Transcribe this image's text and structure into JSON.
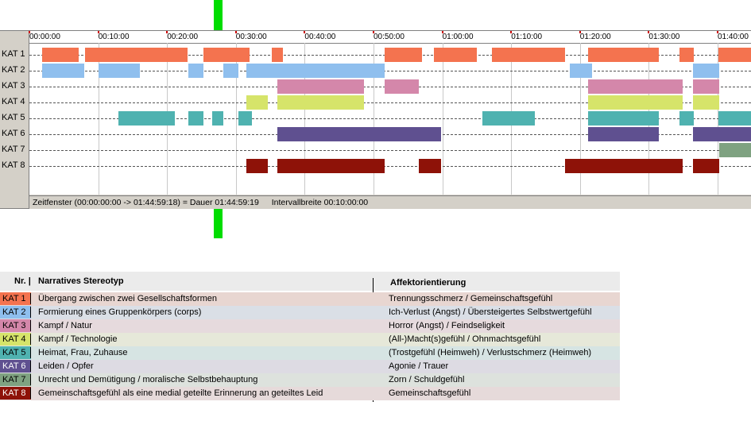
{
  "chart_data": {
    "type": "gantt",
    "x_unit": "minutes",
    "x_range": [
      0,
      105
    ],
    "ticks": [
      "00:00:00",
      "00:10:00",
      "00:20:00",
      "00:30:00",
      "00:40:00",
      "00:50:00",
      "01:00:00",
      "01:10:00",
      "01:20:00",
      "01:30:00",
      "01:40:00"
    ],
    "tick_values": [
      0,
      10,
      20,
      30,
      40,
      50,
      60,
      70,
      80,
      90,
      100
    ],
    "categories": [
      "KAT 1",
      "KAT 2",
      "KAT 3",
      "KAT 4",
      "KAT 5",
      "KAT 6",
      "KAT 7",
      "KAT 8"
    ],
    "colors": [
      "#f4734f",
      "#8fbfee",
      "#d487aa",
      "#d6e46a",
      "#4fb2b0",
      "#5f5090",
      "#7fa281",
      "#8e1208"
    ],
    "series": [
      {
        "category": "KAT 1",
        "intervals": [
          [
            1.8,
            7.2
          ],
          [
            8.1,
            23
          ],
          [
            25.3,
            32
          ],
          [
            35.2,
            36.8
          ],
          [
            51.6,
            57
          ],
          [
            58.8,
            65
          ],
          [
            67.2,
            77.8
          ],
          [
            81.2,
            91.5
          ],
          [
            94.4,
            96.5
          ],
          [
            100.1,
            105
          ]
        ]
      },
      {
        "category": "KAT 2",
        "intervals": [
          [
            1.8,
            8
          ],
          [
            10,
            16.1
          ],
          [
            23.1,
            25.3
          ],
          [
            28.2,
            30.4
          ],
          [
            31.5,
            51.6
          ],
          [
            78.5,
            81.8
          ],
          [
            96.4,
            100.2
          ]
        ]
      },
      {
        "category": "KAT 3",
        "intervals": [
          [
            36,
            48.6
          ],
          [
            51.6,
            56.6
          ],
          [
            81.2,
            94.9
          ],
          [
            96.4,
            100.2
          ]
        ]
      },
      {
        "category": "KAT 4",
        "intervals": [
          [
            31.5,
            34.6
          ],
          [
            36,
            48.6
          ],
          [
            81.2,
            94.9
          ],
          [
            96.4,
            100.2
          ]
        ]
      },
      {
        "category": "KAT 5",
        "intervals": [
          [
            12.9,
            21.1
          ],
          [
            23.1,
            25.3
          ],
          [
            26.6,
            28.2
          ],
          [
            30.4,
            32.3
          ],
          [
            65.8,
            73.4
          ],
          [
            81.2,
            91.5
          ],
          [
            94.4,
            96.5
          ],
          [
            100.1,
            105
          ]
        ]
      },
      {
        "category": "KAT 6",
        "intervals": [
          [
            36,
            59.8
          ],
          [
            81.2,
            91.5
          ],
          [
            96.4,
            105
          ]
        ]
      },
      {
        "category": "KAT 7",
        "intervals": [
          [
            100.2,
            105
          ]
        ]
      },
      {
        "category": "KAT 8",
        "intervals": [
          [
            31.5,
            34.6
          ],
          [
            36,
            51.6
          ],
          [
            56.6,
            59.8
          ],
          [
            77.8,
            94.9
          ],
          [
            96.4,
            100.2
          ]
        ]
      }
    ]
  },
  "status": {
    "zeitfenster": "Zeitfenster (00:00:00:00 -> 01:44:59:18) = Dauer 01:44:59:19",
    "intervall": "Intervallbreite 00:10:00:00"
  },
  "legend": {
    "header_nr": "Nr. |",
    "header_name": "Narratives Stereotyp",
    "header_aff": "Affektorientierung",
    "rows": [
      {
        "nr": "KAT 1",
        "name": "Übergang zwischen zwei Gesellschaftsformen",
        "aff": "Trennungsschmerz / Gemeinschaftsgefühl",
        "bg": "#e8d6d1",
        "swatch": "#f4734f"
      },
      {
        "nr": "KAT 2",
        "name": "Formierung eines Gruppenkörpers (corps)",
        "aff": "Ich-Verlust (Angst) / Übersteigertes Selbstwertgefühl",
        "bg": "#dadfe6",
        "swatch": "#8fbfee"
      },
      {
        "nr": "KAT 3",
        "name": "Kampf / Natur",
        "aff": "Horror (Angst) / Feindseligkeit",
        "bg": "#e6dadd",
        "swatch": "#d487aa"
      },
      {
        "nr": "KAT 4",
        "name": "Kampf / Technologie",
        "aff": "(All-)Macht(s)gefühl / Ohnmachtsgefühl",
        "bg": "#e6e8d9",
        "swatch": "#d6e46a"
      },
      {
        "nr": "KAT 5",
        "name": "Heimat, Frau, Zuhause",
        "aff": "(Trostgefühl (Heimweh) / Verlustschmerz (Heimweh)",
        "bg": "#d6e4e3",
        "swatch": "#4fb2b0"
      },
      {
        "nr": "KAT 6",
        "name": "Leiden / Opfer",
        "aff": "Agonie / Trauer",
        "bg": "#dddbe3",
        "swatch": "#5f5090"
      },
      {
        "nr": "KAT 7",
        "name": "Unrecht und Demütigung / moralische Selbstbehauptung",
        "aff": "Zorn / Schuldgefühl",
        "bg": "#dde2dd",
        "swatch": "#7fa281"
      },
      {
        "nr": "KAT 8",
        "name": "Gemeinschaftsgefühl als eine medial geteilte Erinnerung an geteiltes Leid",
        "aff": "Gemeinschaftsgefühl",
        "bg": "#e6dada",
        "swatch": "#8e1208"
      }
    ]
  }
}
